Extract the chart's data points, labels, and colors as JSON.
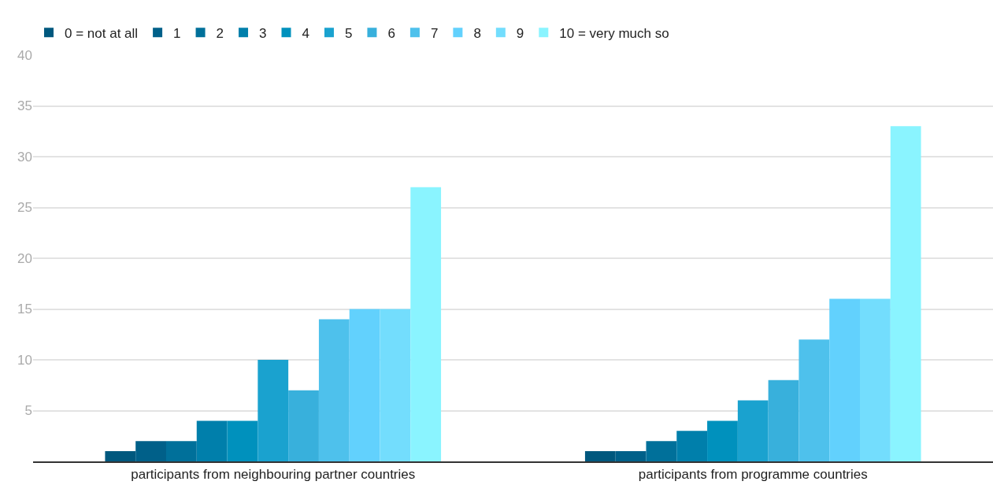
{
  "chart_data": {
    "type": "bar",
    "categories": [
      "participants from neighbouring partner countries",
      "participants from programme countries"
    ],
    "series": [
      {
        "name": "0 = not at all",
        "color": "#00587e",
        "values": [
          1,
          1
        ]
      },
      {
        "name": "1",
        "color": "#006089",
        "values": [
          2,
          1
        ]
      },
      {
        "name": "2",
        "color": "#00709a",
        "values": [
          2,
          2
        ]
      },
      {
        "name": "3",
        "color": "#007fab",
        "values": [
          4,
          3
        ]
      },
      {
        "name": "4",
        "color": "#0091bd",
        "values": [
          4,
          4
        ]
      },
      {
        "name": "5",
        "color": "#1aa2cf",
        "values": [
          10,
          6
        ]
      },
      {
        "name": "6",
        "color": "#38b0dc",
        "values": [
          7,
          8
        ]
      },
      {
        "name": "7",
        "color": "#4ec1ec",
        "values": [
          14,
          12
        ]
      },
      {
        "name": "8",
        "color": "#62d1fd",
        "values": [
          15,
          16
        ]
      },
      {
        "name": "9",
        "color": "#73ddfd",
        "values": [
          15,
          16
        ]
      },
      {
        "name": "10 = very much so",
        "color": "#8af4ff",
        "values": [
          27,
          33
        ]
      }
    ],
    "ylim": [
      0,
      40
    ],
    "yticks": [
      5,
      10,
      15,
      20,
      25,
      30,
      35,
      40
    ],
    "grid": "y",
    "legend": "top left"
  }
}
